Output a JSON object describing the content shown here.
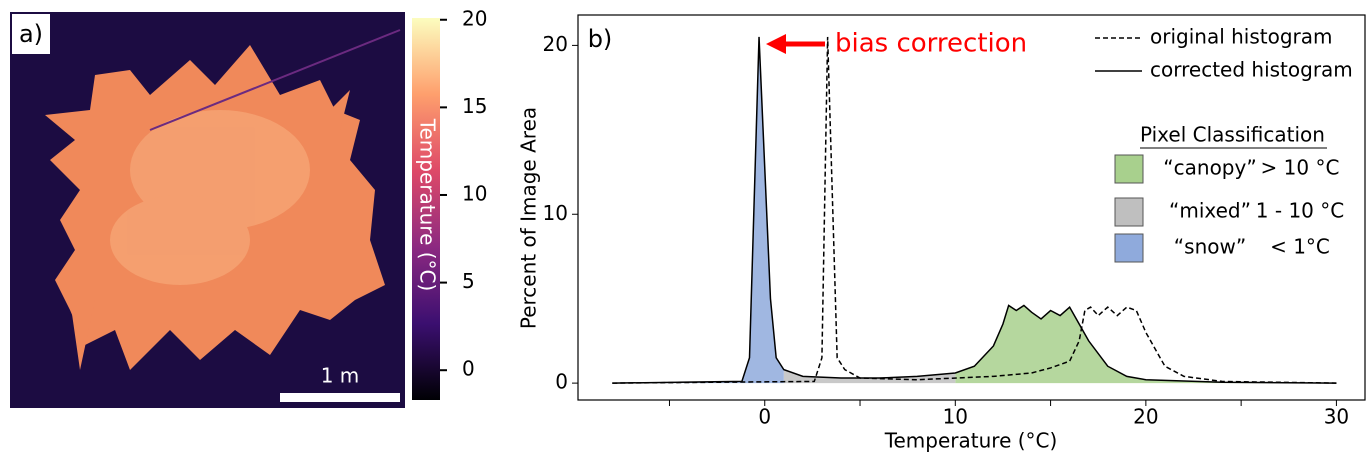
{
  "chart_data": [
    {
      "type": "image",
      "panel_label": "a)",
      "scale_bar_label": "1 m",
      "colorbar_label": "Temperature (°C)",
      "clim": [
        -1.7,
        20.1
      ],
      "cticks": [
        0,
        5,
        10,
        15,
        20
      ],
      "colormap": [
        "#000004",
        "#3b0f70",
        "#8c2981",
        "#de4968",
        "#fe9f6d",
        "#fcfdbf"
      ]
    },
    {
      "type": "line",
      "panel_label": "b)",
      "xlabel": "Temperature (°C)",
      "ylabel": "Percent of Image Area",
      "xlim": [
        -9.8,
        31.5
      ],
      "ylim": [
        -1,
        21.8
      ],
      "xticks": [
        0,
        10,
        20,
        30
      ],
      "xminorticks": [
        -5,
        5,
        15,
        25
      ],
      "yticks": [
        0,
        10,
        20
      ],
      "annotation": "bias correction",
      "annotation_color": "#ff0000",
      "series": [
        {
          "name": "original histogram",
          "style": "dashed",
          "color": "#000000",
          "x": [
            -8,
            2.6,
            3.0,
            3.3,
            3.8,
            4.2,
            5,
            8,
            12,
            14,
            15,
            16,
            16.5,
            16.8,
            17.1,
            17.5,
            18,
            18.5,
            19,
            19.5,
            20,
            21,
            22,
            24,
            30
          ],
          "values": [
            0,
            0.1,
            1.5,
            20.5,
            1.5,
            0.8,
            0.3,
            0.2,
            0.4,
            0.6,
            0.9,
            1.3,
            2.5,
            4.3,
            4.5,
            4.0,
            4.5,
            4.0,
            4.5,
            4.3,
            3.0,
            1.0,
            0.4,
            0.1,
            0
          ]
        },
        {
          "name": "corrected histogram",
          "style": "solid",
          "color": "#000000",
          "x": [
            -8,
            -1.2,
            -0.8,
            -0.3,
            0.3,
            0.6,
            1,
            2,
            4,
            6,
            8,
            10,
            11,
            12,
            12.5,
            12.8,
            13.2,
            13.6,
            14,
            14.5,
            15,
            15.5,
            16,
            16.5,
            17,
            18,
            19,
            20,
            24,
            30
          ],
          "values": [
            0,
            0.1,
            1.5,
            20.5,
            5,
            1.5,
            0.8,
            0.4,
            0.3,
            0.3,
            0.4,
            0.6,
            1.0,
            2.2,
            3.5,
            4.6,
            4.3,
            4.6,
            4.2,
            3.8,
            4.3,
            4.0,
            4.5,
            3.5,
            2.5,
            1.0,
            0.4,
            0.2,
            0.05,
            0
          ]
        }
      ],
      "classification_title": "Pixel Classification",
      "classes": [
        {
          "name": "“canopy”",
          "range_label": "> 10 °C",
          "color": "#a8d08d",
          "min": 10
        },
        {
          "name": "“mixed”",
          "range_label": "1 - 10 °C",
          "color": "#bfbfbf",
          "min": 1,
          "max": 10
        },
        {
          "name": "“snow”",
          "range_label": "< 1°C",
          "color": "#8faadc",
          "max": 1
        }
      ]
    }
  ]
}
